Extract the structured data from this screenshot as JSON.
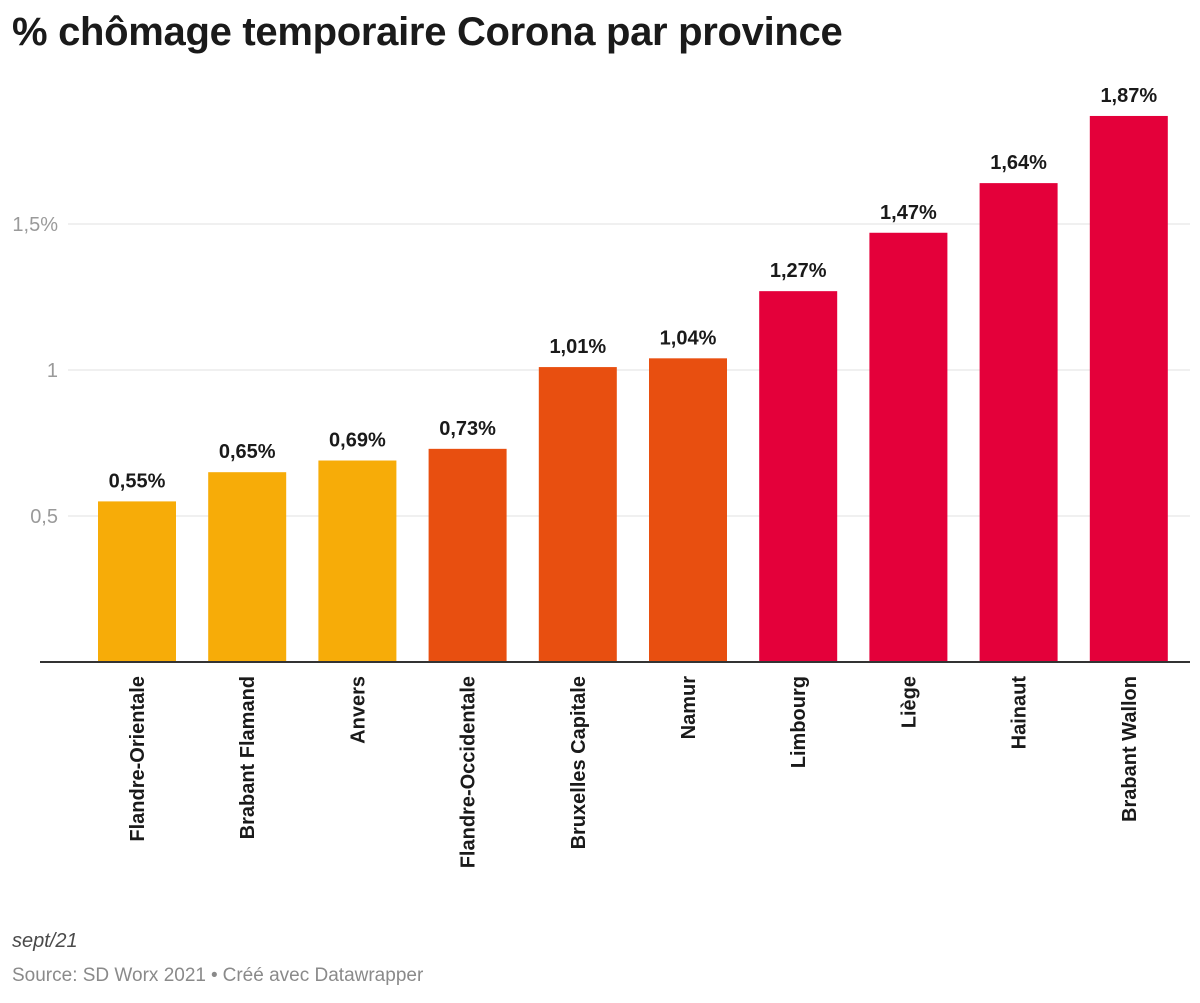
{
  "title": "% chômage temporaire Corona par province",
  "note": "sept/21",
  "source": {
    "text": "Source: SD Worx 2021",
    "separator": "•",
    "credit": "Créé avec Datawrapper"
  },
  "chart_data": {
    "type": "bar",
    "title": "% chômage temporaire Corona par province",
    "xlabel": "",
    "ylabel": "",
    "ylim": [
      0,
      2
    ],
    "yticks": [
      {
        "value": 0.5,
        "label": "0,5"
      },
      {
        "value": 1,
        "label": "1"
      },
      {
        "value": 1.5,
        "label": "1,5%"
      }
    ],
    "grid": true,
    "legend": "none",
    "categories": [
      "Flandre-Orientale",
      "Brabant Flamand",
      "Anvers",
      "Flandre-Occidentale",
      "Bruxelles Capitale",
      "Namur",
      "Limbourg",
      "Liège",
      "Hainaut",
      "Brabant Wallon"
    ],
    "values": [
      0.55,
      0.65,
      0.69,
      0.73,
      1.01,
      1.04,
      1.27,
      1.47,
      1.64,
      1.87
    ],
    "value_labels": [
      "0,55%",
      "0,65%",
      "0,69%",
      "0,73%",
      "1,01%",
      "1,04%",
      "1,27%",
      "1,47%",
      "1,64%",
      "1,87%"
    ],
    "colors": [
      "#f7ac08",
      "#f7ac08",
      "#f7ac08",
      "#e84f10",
      "#e84f10",
      "#e84f10",
      "#e4003a",
      "#e4003a",
      "#e4003a",
      "#e4003a"
    ]
  }
}
